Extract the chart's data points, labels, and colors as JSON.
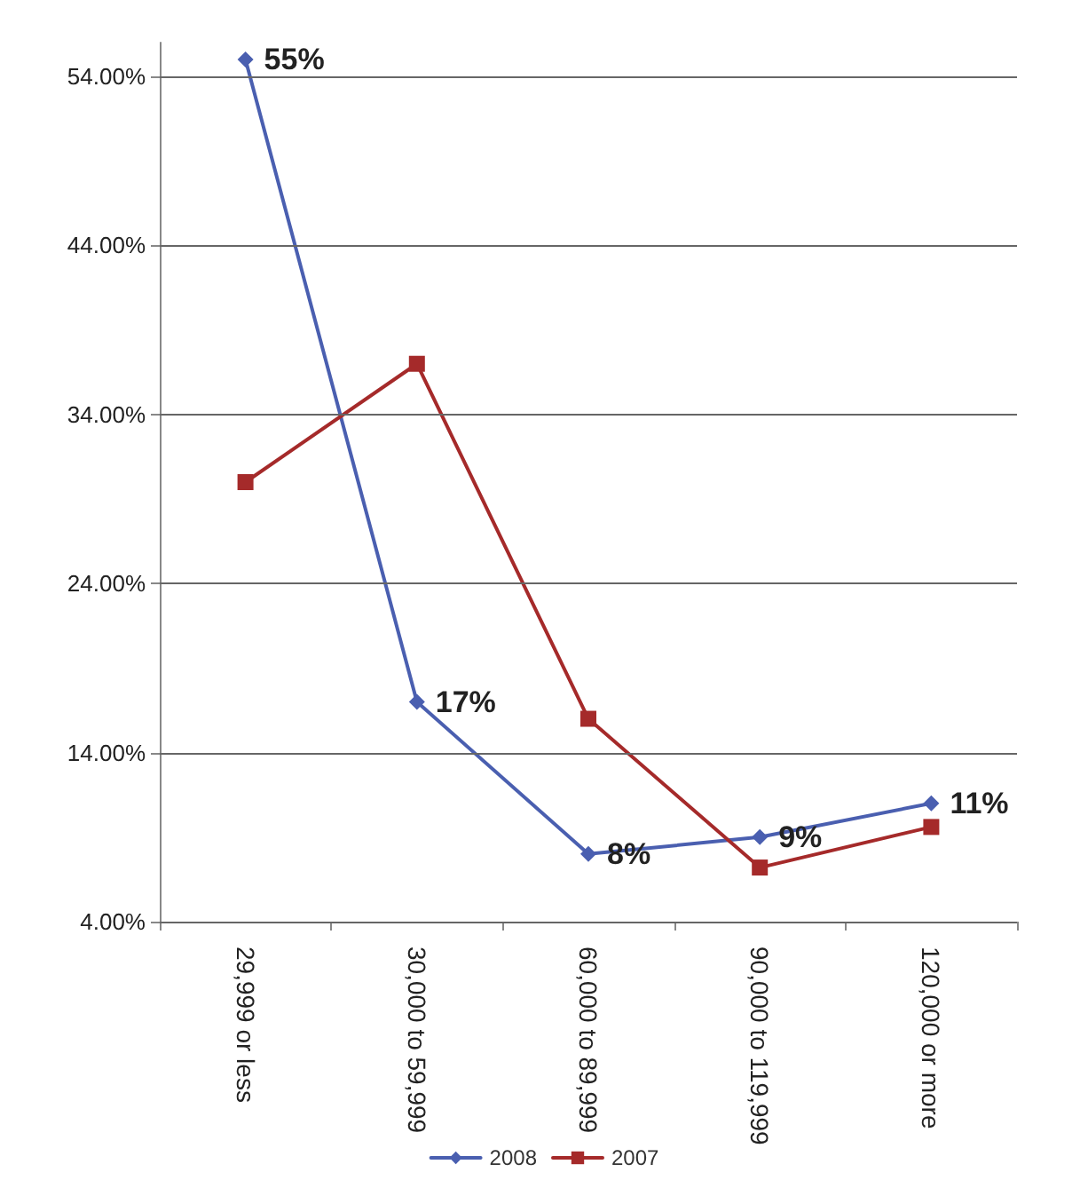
{
  "chart_data": {
    "type": "line",
    "categories": [
      "29,999 or less",
      "30,000 to 59,999",
      "60,000 to 89,999",
      "90,000 to 119,999",
      "120,000 or more"
    ],
    "series": [
      {
        "name": "2008",
        "color": "#4a5fb0",
        "marker": "diamond",
        "values": [
          55,
          17,
          8,
          9,
          11
        ],
        "value_labels": [
          "55%",
          "17%",
          "8%",
          "9%",
          "11%"
        ]
      },
      {
        "name": "2007",
        "color": "#a52a2a",
        "marker": "square",
        "values": [
          30,
          37,
          16,
          7.2,
          9.6
        ]
      }
    ],
    "ylim": [
      4,
      56
    ],
    "yticks": [
      {
        "value": 4,
        "label": "4.00%"
      },
      {
        "value": 14,
        "label": "14.00%"
      },
      {
        "value": 24,
        "label": "24.00%"
      },
      {
        "value": 34,
        "label": "34.00%"
      },
      {
        "value": 44,
        "label": "44.00%"
      },
      {
        "value": 54,
        "label": "54.00%"
      }
    ],
    "grid": "y",
    "legend": "bottom"
  }
}
